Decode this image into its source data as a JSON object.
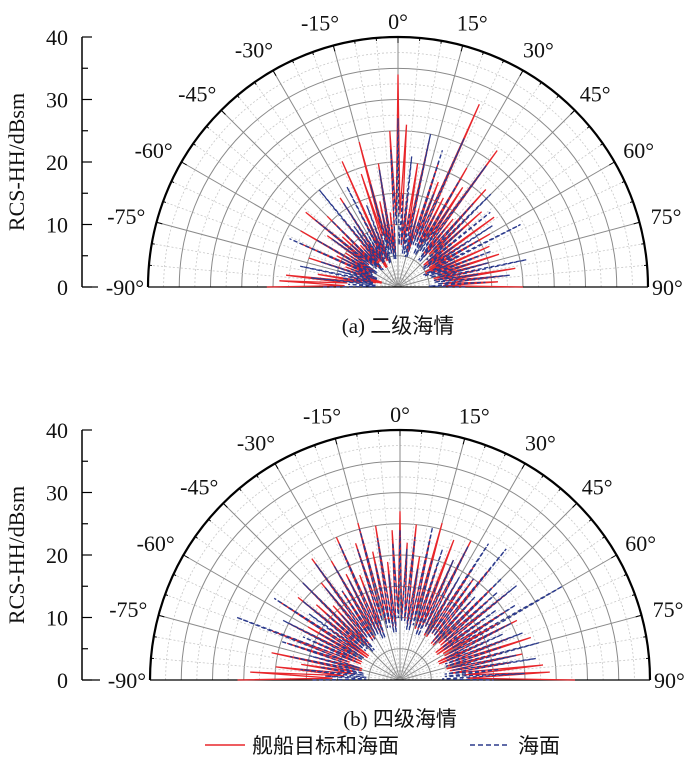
{
  "chart_data": [
    {
      "type": "polar-line",
      "caption": "(a) 二级海情",
      "ylabel": "RCS-HH/dBsm",
      "rlim": [
        0,
        40
      ],
      "r_ticks": [
        "0",
        "10",
        "20",
        "30",
        "40"
      ],
      "angle_ticks": [
        "-90°",
        "-75°",
        "-60°",
        "-45°",
        "-30°",
        "-15°",
        "0°",
        "15°",
        "30°",
        "45°",
        "60°",
        "75°",
        "90°"
      ],
      "angle_range": [
        -90,
        90
      ],
      "angle_step": 3,
      "series": [
        {
          "name": "舰船目标和海面",
          "color": "#e8262b",
          "dash": "solid",
          "values": [
            21,
            19,
            18,
            13,
            8,
            6,
            15,
            9,
            17,
            11,
            18,
            10,
            14,
            19,
            12,
            16,
            9,
            14,
            11,
            17,
            8,
            13,
            22,
            10,
            19,
            24,
            14,
            20,
            12,
            25,
            34,
            26,
            15,
            20,
            24,
            13,
            21,
            18,
            32,
            16,
            22,
            19,
            27,
            14,
            21,
            16,
            18,
            12,
            19,
            13,
            17,
            11,
            16,
            14,
            17,
            15,
            13,
            19,
            17,
            16,
            20
          ]
        },
        {
          "name": "海面",
          "color": "#2b3a8c",
          "dash": "dashed",
          "values": [
            12,
            8,
            14,
            9,
            16,
            10,
            13,
            8,
            19,
            10,
            15,
            9,
            13,
            17,
            10,
            15,
            8,
            20,
            12,
            16,
            10,
            18,
            11,
            14,
            9,
            17,
            12,
            19,
            10,
            22,
            27,
            15,
            21,
            12,
            25,
            11,
            23,
            16,
            26,
            13,
            20,
            15,
            24,
            12,
            18,
            21,
            14,
            19,
            11,
            18,
            15,
            22,
            10,
            16,
            12,
            15,
            21,
            13,
            18,
            14,
            11
          ]
        }
      ]
    },
    {
      "type": "polar-line",
      "caption": "(b) 四级海情",
      "ylabel": "RCS-HH/dBsm",
      "rlim": [
        0,
        40
      ],
      "r_ticks": [
        "0",
        "10",
        "20",
        "30",
        "40"
      ],
      "angle_ticks": [
        "-90°",
        "-75°",
        "-60°",
        "-45°",
        "-30°",
        "-15°",
        "0°",
        "15°",
        "30°",
        "45°",
        "60°",
        "75°",
        "90°"
      ],
      "angle_range": [
        -90,
        90
      ],
      "angle_step": 3,
      "series": [
        {
          "name": "舰船目标和海面",
          "color": "#e8262b",
          "dash": "solid",
          "values": [
            26,
            24,
            20,
            16,
            21,
            14,
            19,
            22,
            15,
            20,
            17,
            23,
            14,
            21,
            18,
            22,
            16,
            20,
            24,
            17,
            22,
            19,
            25,
            18,
            23,
            26,
            21,
            25,
            19,
            24,
            27,
            22,
            25,
            20,
            23,
            26,
            19,
            24,
            21,
            25,
            18,
            22,
            20,
            23,
            17,
            21,
            19,
            22,
            16,
            20,
            18,
            21,
            15,
            19,
            22,
            17,
            20,
            18,
            23,
            24,
            28
          ]
        },
        {
          "name": "海面",
          "color": "#2b3a8c",
          "dash": "dashed",
          "values": [
            14,
            12,
            16,
            13,
            18,
            15,
            20,
            28,
            17,
            21,
            15,
            24,
            18,
            20,
            16,
            22,
            14,
            19,
            23,
            17,
            21,
            18,
            24,
            16,
            22,
            25,
            19,
            23,
            17,
            22,
            24,
            21,
            23,
            18,
            25,
            20,
            22,
            17,
            21,
            24,
            19,
            26,
            20,
            27,
            18,
            23,
            21,
            24,
            19,
            22,
            30,
            20,
            18,
            21,
            17,
            23,
            19,
            22,
            16,
            20,
            15
          ]
        }
      ]
    }
  ],
  "legend": {
    "items": [
      {
        "label": "舰船目标和海面",
        "color": "#e8262b",
        "dash": "solid"
      },
      {
        "label": "海面",
        "color": "#2b3a8c",
        "dash": "dashed"
      }
    ],
    "placement": "bottom"
  }
}
